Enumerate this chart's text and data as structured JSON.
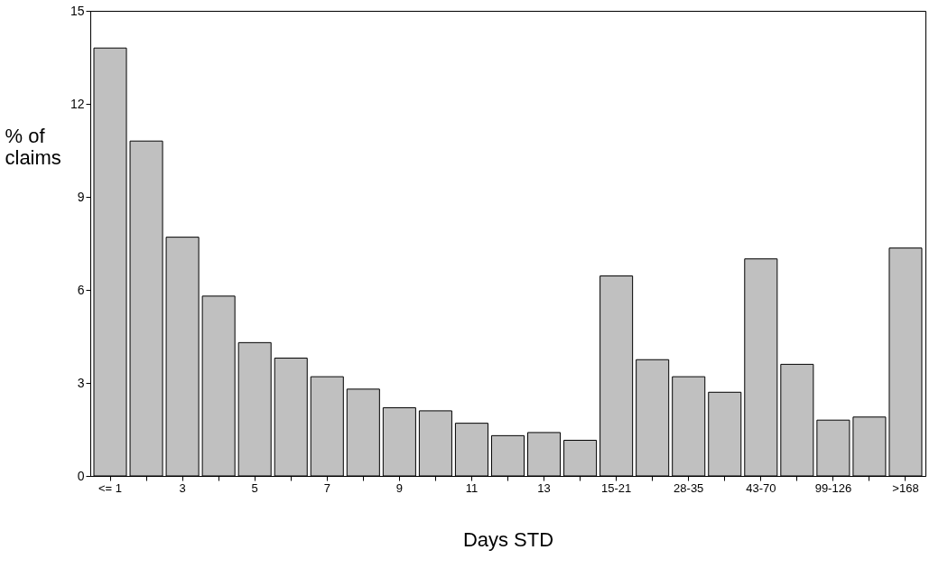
{
  "chart_data": {
    "type": "bar",
    "xlabel": "Days STD",
    "ylabel": "% of claims",
    "categories": [
      "<= 1",
      null,
      "3",
      null,
      "5",
      null,
      "7",
      null,
      "9",
      null,
      "11",
      null,
      "13",
      null,
      "15-21",
      null,
      "28-35",
      null,
      "43-70",
      null,
      "99-126",
      null,
      ">168"
    ],
    "values": [
      13.8,
      10.8,
      7.7,
      5.8,
      4.3,
      3.8,
      3.2,
      2.8,
      2.2,
      2.1,
      1.7,
      1.3,
      1.4,
      1.15,
      6.45,
      3.75,
      3.2,
      2.7,
      7.0,
      3.6,
      1.8,
      1.9,
      7.35
    ],
    "color": "#c0c0c0",
    "ylim": [
      0,
      15
    ],
    "yticks": [
      0,
      3,
      6,
      9,
      12,
      15
    ],
    "grid": false
  }
}
